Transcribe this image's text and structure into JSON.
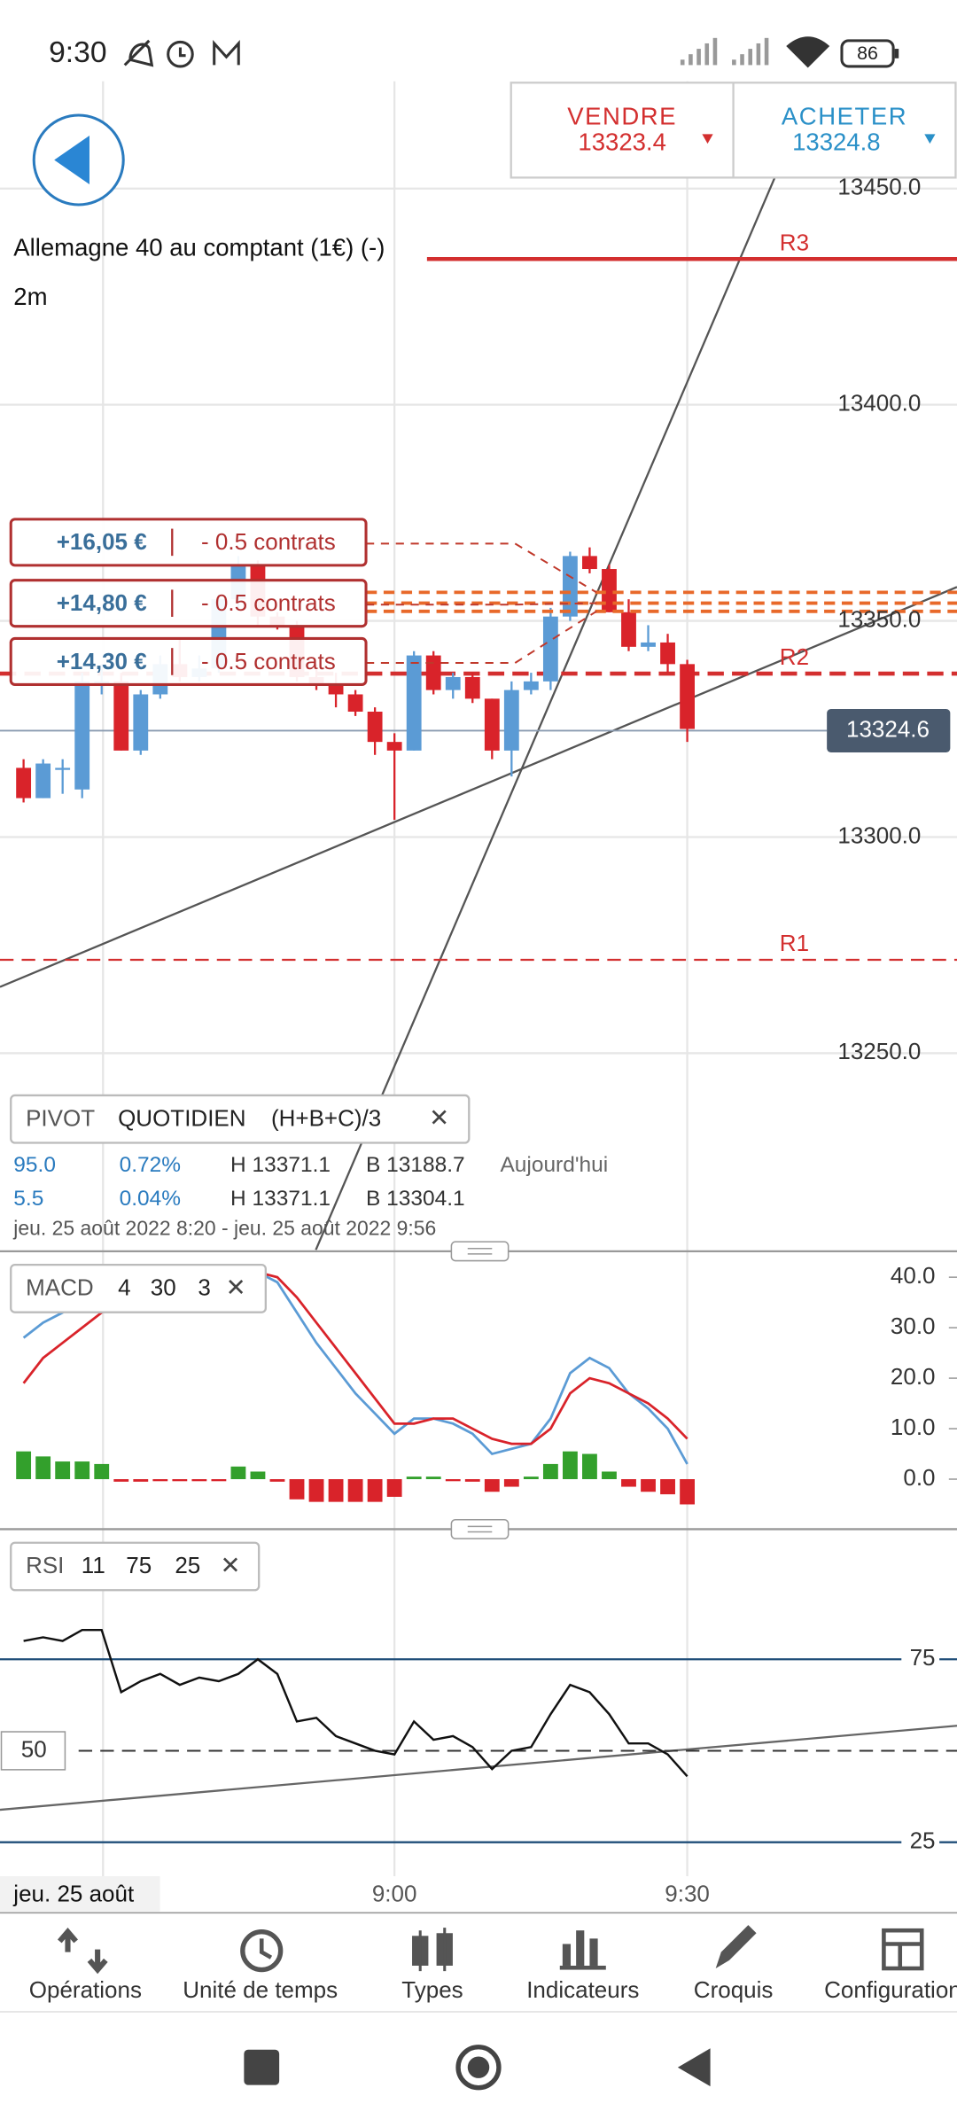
{
  "status_bar": {
    "time": "9:30",
    "battery": "86"
  },
  "trade": {
    "sell_label": "VENDRE",
    "sell_price": "13323.4",
    "buy_label": "ACHETER",
    "buy_price": "13324.8"
  },
  "main_chart": {
    "instrument": "Allemagne 40 au comptant (1€) (-)",
    "timeframe": "2m",
    "ylim": [
      13204.5,
      13474.8
    ],
    "yticks": [
      {
        "value": 13450,
        "label": "13450.0"
      },
      {
        "value": 13400,
        "label": "13400.0"
      },
      {
        "value": 13350,
        "label": "13350.0"
      },
      {
        "value": 13300,
        "label": "13300.0"
      },
      {
        "value": 13250,
        "label": "13250.0"
      }
    ],
    "levels": [
      {
        "label": "R3",
        "value": 13433.7
      },
      {
        "label": "R2",
        "value": 13337.8
      },
      {
        "label": "R1",
        "value": 13271.6
      }
    ],
    "last_price": 13324.6,
    "orders": [
      {
        "pnl": "+16,05 €",
        "size": "- 0.5 contrats",
        "entry": 13356.6
      },
      {
        "pnl": "+14,80 €",
        "size": "- 0.5 contrats",
        "entry": 13354.1
      },
      {
        "pnl": "+14,30 €",
        "size": "- 0.5 contrats",
        "entry": 13352.2
      }
    ],
    "candles": {
      "open": [
        13316,
        13309,
        13316,
        13311,
        13336,
        13336,
        13320,
        13333,
        13340,
        13337,
        13339,
        13355,
        13363,
        13351,
        13349,
        13337,
        13335,
        13333,
        13329,
        13322,
        13320,
        13342,
        13334,
        13337,
        13332,
        13320,
        13334,
        13336,
        13351,
        13365,
        13362,
        13352,
        13344,
        13345,
        13340
      ],
      "high": [
        13318,
        13318,
        13318,
        13338,
        13340,
        13338,
        13334,
        13342,
        13346,
        13342,
        13356,
        13365,
        13364,
        13352,
        13350,
        13340,
        13338,
        13334,
        13330,
        13324,
        13343,
        13343,
        13338,
        13338,
        13332,
        13336,
        13338,
        13353,
        13366,
        13367,
        13363,
        13355,
        13349,
        13347,
        13341
      ],
      "low": [
        13308,
        13309,
        13310,
        13309,
        13333,
        13320,
        13319,
        13332,
        13336,
        13336,
        13338,
        13353,
        13349,
        13348,
        13336,
        13334,
        13330,
        13328,
        13319,
        13304,
        13320,
        13333,
        13332,
        13331,
        13318,
        13314,
        13333,
        13334,
        13350,
        13361,
        13352,
        13343,
        13343,
        13338,
        13322
      ],
      "close": [
        13309,
        13317,
        13316,
        13336,
        13336,
        13320,
        13333,
        13340,
        13337,
        13339,
        13355,
        13363,
        13351,
        13349,
        13337,
        13335,
        13333,
        13329,
        13322,
        13320,
        13342,
        13334,
        13337,
        13332,
        13320,
        13334,
        13336,
        13351,
        13365,
        13362,
        13352,
        13344,
        13345,
        13340,
        13325
      ]
    }
  },
  "x_labels": [
    "jeu. 25 août",
    "9:00",
    "9:30"
  ],
  "pivot": {
    "title": "PIVOT",
    "period": "QUOTIDIEN",
    "formula": "(H+B+C)/3",
    "rows": [
      [
        "95.0",
        "0.72%",
        "H 13371.1",
        "B 13188.7",
        "Aujourd'hui"
      ],
      [
        "5.5",
        "0.04%",
        "H 13371.1",
        "B 13304.1"
      ]
    ],
    "range": "jeu. 25 août 2022 8:20 - jeu. 25 août 2022 9:56"
  },
  "macd": {
    "name": "MACD",
    "params": [
      "4",
      "30",
      "3"
    ],
    "ylim": [
      -9.1,
      43.8
    ],
    "yticks": [
      {
        "value": 40,
        "label": "40.0"
      },
      {
        "value": 30,
        "label": "30.0"
      },
      {
        "value": 20,
        "label": "20.0"
      },
      {
        "value": 10,
        "label": "10.0"
      },
      {
        "value": 0,
        "label": "0.0"
      }
    ],
    "macd_line": [
      28,
      31,
      33,
      36,
      37,
      38,
      39,
      40,
      40,
      41,
      41,
      41,
      41,
      39,
      33,
      27,
      22,
      17,
      13,
      9,
      12,
      12,
      11,
      9,
      5,
      6,
      7,
      12,
      21,
      24,
      22,
      17,
      14,
      10,
      3
    ],
    "signal_line": [
      19,
      24,
      27,
      30,
      33,
      35,
      37,
      38,
      39,
      40,
      40,
      41,
      41,
      40,
      36,
      31,
      26,
      21,
      16,
      11,
      11,
      12,
      12,
      10,
      8,
      7,
      7,
      10,
      17,
      20,
      19,
      17,
      15,
      12,
      8
    ],
    "histogram": [
      5.5,
      4.5,
      3.5,
      3.5,
      3,
      -0.5,
      -0.5,
      -0.3,
      -0.3,
      -0.3,
      -0.3,
      2.5,
      1.5,
      -0.5,
      -4,
      -4.5,
      -4.5,
      -4.5,
      -4.5,
      -3.5,
      0.5,
      0.5,
      -0.2,
      -0.5,
      -2.5,
      -1.5,
      0.5,
      3,
      5.5,
      5,
      1.5,
      -1.5,
      -2.5,
      -3,
      -5
    ]
  },
  "rsi": {
    "name": "RSI",
    "params": [
      "11",
      "75",
      "25"
    ],
    "ylim": [
      17.2,
      106.1
    ],
    "yticks": [
      75,
      25
    ],
    "midline": 50,
    "values": [
      80,
      81,
      80,
      83,
      83,
      66,
      69,
      71,
      68,
      70,
      69,
      71,
      75,
      71,
      58,
      59,
      54,
      52,
      50,
      49,
      58,
      53,
      54,
      51,
      45,
      50,
      51,
      60,
      68,
      66,
      60,
      52,
      52,
      49,
      43
    ]
  },
  "nav": [
    "Opérations",
    "Unité de temps",
    "Types",
    "Indicateurs",
    "Croquis",
    "Configuration"
  ]
}
